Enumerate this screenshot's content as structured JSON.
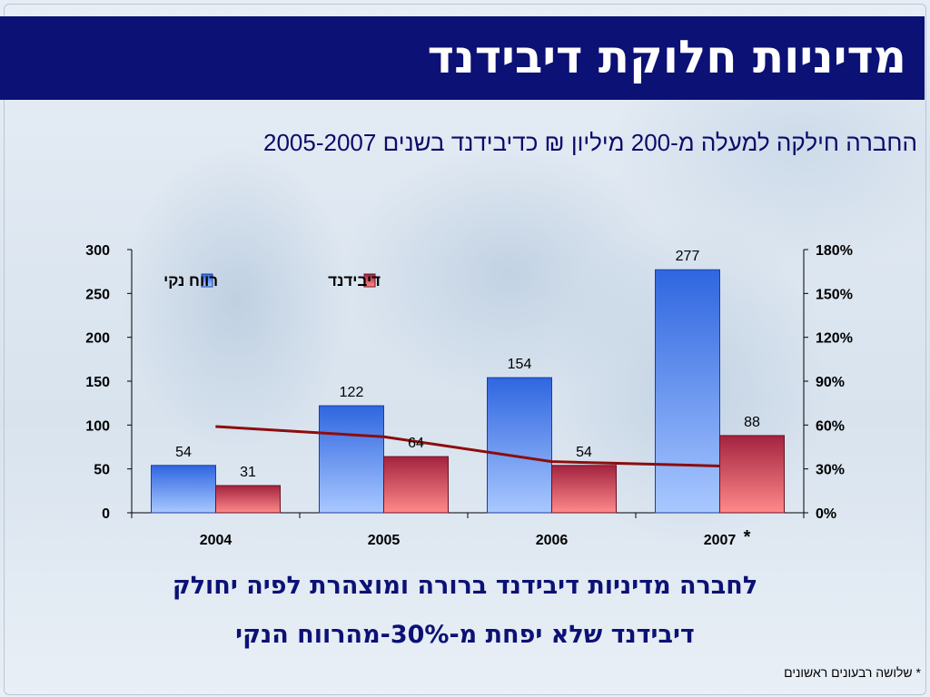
{
  "slide": {
    "title": "מדיניות חלוקת דיבידנד",
    "subtitle": "החברה חילקה למעלה מ-200 מיליון ₪ כדיבידנד בשנים 2005-2007",
    "caption_line1": "לחברה מדיניות דיבידנד ברורה ומוצהרת לפיה יחולק",
    "caption_line2": "דיבידנד שלא יפחת מ-30%-מהרווח הנקי",
    "footnote": "* שלושה רבעונים ראשונים",
    "asterisk": "*"
  },
  "colors": {
    "title_bar": "#0c1175",
    "net_profit": "#3e74e6",
    "dividend": "#c83e58",
    "ratio_line": "#8b0d0d"
  },
  "chart_data": {
    "type": "bar",
    "categories": [
      "2004",
      "2005",
      "2006",
      "2007"
    ],
    "series": [
      {
        "name": "רווח נקי",
        "values": [
          54,
          122,
          154,
          277
        ]
      },
      {
        "name": "דיבידנד",
        "values": [
          31,
          64,
          54,
          88
        ]
      }
    ],
    "line_series": {
      "values": [
        0.59,
        0.52,
        0.35,
        0.32
      ],
      "axis": "right"
    },
    "left_axis": {
      "ylim": [
        0,
        300
      ],
      "ticks": [
        "0",
        "50",
        "100",
        "150",
        "200",
        "250",
        "300"
      ]
    },
    "right_axis": {
      "ylim": [
        0,
        1.8
      ],
      "ticks": [
        "0%",
        "30%",
        "60%",
        "90%",
        "120%",
        "150%",
        "180%"
      ]
    },
    "legend_position": "top-left",
    "grid": false
  }
}
